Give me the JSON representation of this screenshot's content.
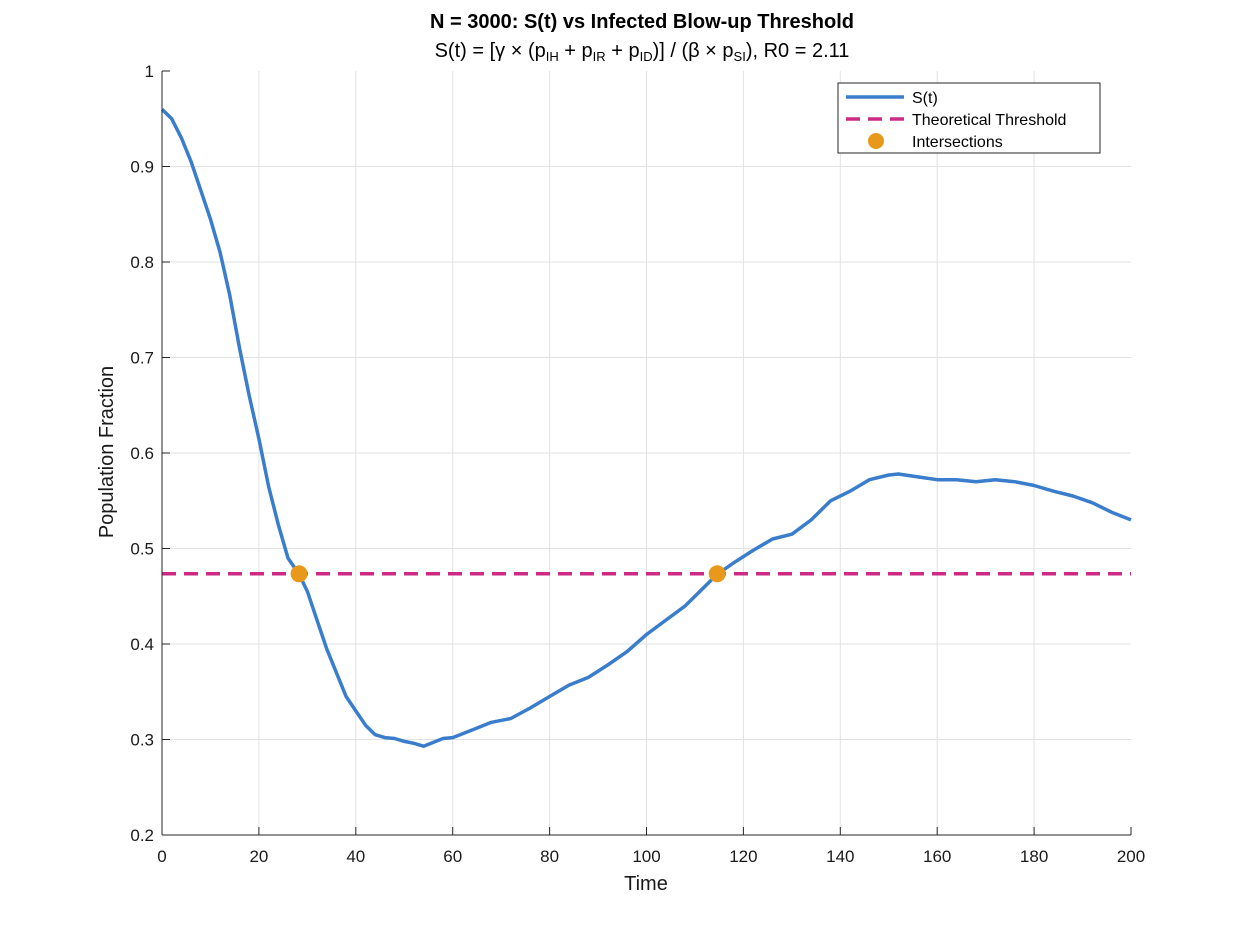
{
  "chart_data": {
    "type": "line",
    "title": "N = 3000: S(t) vs Infected Blow-up Threshold",
    "subtitle": {
      "parts": [
        {
          "t": "S(t)  =  [γ  ×  (p"
        },
        {
          "t": "IH",
          "sub": true
        },
        {
          "t": "  +  p"
        },
        {
          "t": "IR",
          "sub": true
        },
        {
          "t": "  +  p"
        },
        {
          "t": "ID",
          "sub": true
        },
        {
          "t": ")]  /  (β  ×  p"
        },
        {
          "t": "SI",
          "sub": true
        },
        {
          "t": "),  R0  =  2.11"
        }
      ]
    },
    "xlabel": "Time",
    "ylabel": "Population Fraction",
    "xlim": [
      0,
      200
    ],
    "ylim": [
      0.2,
      1
    ],
    "xticks": [
      0,
      20,
      40,
      60,
      80,
      100,
      120,
      140,
      160,
      180,
      200
    ],
    "yticks": [
      0.2,
      0.3,
      0.4,
      0.5,
      0.6,
      0.7,
      0.8,
      0.9,
      1
    ],
    "ytick_labels": [
      "0.2",
      "0.3",
      "0.4",
      "0.5",
      "0.6",
      "0.7",
      "0.8",
      "0.9",
      "1"
    ],
    "grid": true,
    "legend_position": "top-right",
    "series": [
      {
        "name": "S(t)",
        "kind": "line",
        "color": "#3a7dcc",
        "x": [
          0,
          2,
          4,
          6,
          8,
          10,
          12,
          14,
          16,
          18,
          20,
          22,
          24,
          26,
          28.3,
          30,
          32,
          34,
          36,
          38,
          40,
          42,
          44,
          46,
          48,
          50,
          52,
          54,
          56,
          58,
          60,
          64,
          68,
          72,
          76,
          80,
          84,
          88,
          92,
          96,
          100,
          104,
          108,
          112,
          114.6,
          118,
          122,
          126,
          130,
          134,
          138,
          142,
          146,
          150,
          152,
          156,
          160,
          164,
          168,
          172,
          176,
          180,
          184,
          188,
          192,
          196,
          200
        ],
        "y": [
          0.96,
          0.95,
          0.93,
          0.905,
          0.875,
          0.845,
          0.81,
          0.765,
          0.71,
          0.66,
          0.615,
          0.565,
          0.525,
          0.49,
          0.473,
          0.455,
          0.425,
          0.395,
          0.37,
          0.345,
          0.33,
          0.315,
          0.305,
          0.302,
          0.301,
          0.298,
          0.296,
          0.293,
          0.297,
          0.301,
          0.302,
          0.31,
          0.318,
          0.322,
          0.333,
          0.345,
          0.357,
          0.365,
          0.378,
          0.392,
          0.41,
          0.425,
          0.44,
          0.46,
          0.473,
          0.485,
          0.498,
          0.51,
          0.515,
          0.53,
          0.55,
          0.56,
          0.572,
          0.577,
          0.578,
          0.575,
          0.572,
          0.572,
          0.57,
          0.572,
          0.57,
          0.566,
          0.56,
          0.555,
          0.548,
          0.538,
          0.53
        ]
      },
      {
        "name": "Theoretical Threshold",
        "kind": "hline",
        "color": "#cc2a84",
        "y": 0.4735
      },
      {
        "name": "Intersections",
        "kind": "markers",
        "color": "#e8991c",
        "x": [
          28.3,
          114.6
        ],
        "y": [
          0.4735,
          0.4735
        ]
      }
    ]
  }
}
